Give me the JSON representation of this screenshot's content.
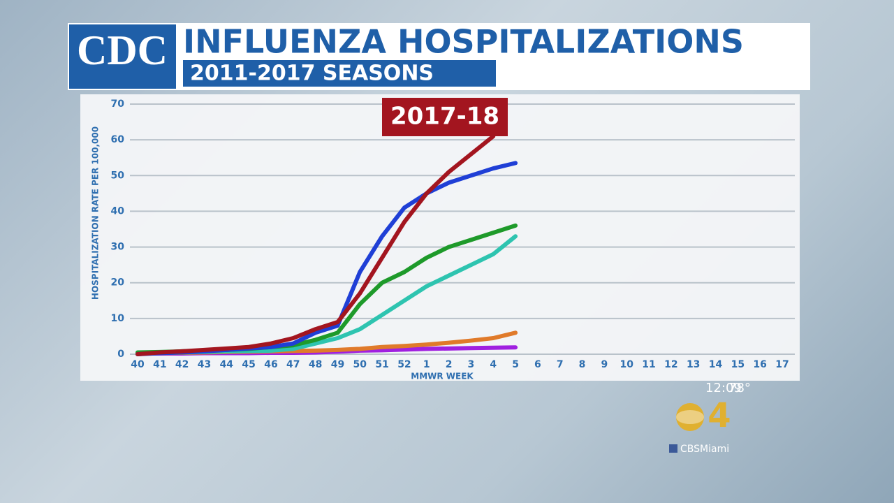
{
  "header": {
    "logo": "CDC",
    "title": "INFLUENZA HOSPITALIZATIONS",
    "subtitle": "2011-2017 SEASONS"
  },
  "overlay": {
    "time": "12:09",
    "temperature": "78°",
    "channel": "4",
    "handle": "CBSMiami"
  },
  "chart_data": {
    "type": "line",
    "x_label": "MMWR WEEK",
    "y_label": "HOSPITALIZATION RATE PER 100,000",
    "categories": [
      40,
      41,
      42,
      43,
      44,
      45,
      46,
      47,
      48,
      49,
      50,
      51,
      52,
      1,
      2,
      3,
      4,
      5,
      6,
      7,
      8,
      9,
      10,
      11,
      12,
      13,
      14,
      15,
      16,
      17
    ],
    "ylim": [
      0,
      70
    ],
    "yticks": [
      0,
      10,
      20,
      30,
      40,
      50,
      60,
      70
    ],
    "grid": true,
    "series": [
      {
        "name": "2017-18",
        "color": "#a3151f",
        "values": [
          0,
          0.5,
          0.8,
          1.2,
          1.6,
          2,
          3,
          4.5,
          7,
          9,
          17,
          27,
          37,
          45,
          51,
          56,
          61,
          null,
          null,
          null,
          null,
          null,
          null,
          null,
          null,
          null,
          null,
          null,
          null,
          null
        ]
      },
      {
        "color": "#1f3fd6",
        "values": [
          0,
          0.3,
          0.5,
          0.8,
          1.2,
          1.6,
          2,
          3,
          6,
          8,
          23,
          33,
          41,
          45,
          48,
          50,
          52,
          53.5,
          null,
          null,
          null,
          null,
          null,
          null,
          null,
          null,
          null,
          null,
          null,
          null
        ]
      },
      {
        "color": "#1e9a2a",
        "values": [
          0.5,
          0.6,
          0.8,
          1,
          1.2,
          1.5,
          2,
          2.5,
          4,
          6,
          14,
          20,
          23,
          27,
          30,
          32,
          34,
          36,
          null,
          null,
          null,
          null,
          null,
          null,
          null,
          null,
          null,
          null,
          null,
          null
        ]
      },
      {
        "color": "#2ec4b0",
        "values": [
          0.3,
          0.4,
          0.5,
          0.6,
          0.8,
          0.9,
          1,
          1.5,
          3,
          4.5,
          7,
          11,
          15,
          19,
          22,
          25,
          28,
          33,
          null,
          null,
          null,
          null,
          null,
          null,
          null,
          null,
          null,
          null,
          null,
          null
        ]
      },
      {
        "color": "#e07a2a",
        "values": [
          0.2,
          0.3,
          0.4,
          0.5,
          0.6,
          0.7,
          0.8,
          0.9,
          1,
          1.2,
          1.5,
          2,
          2.3,
          2.7,
          3.2,
          3.8,
          4.5,
          6,
          null,
          null,
          null,
          null,
          null,
          null,
          null,
          null,
          null,
          null,
          null,
          null
        ]
      },
      {
        "color": "#a020e0",
        "values": [
          0.2,
          0.2,
          0.2,
          0.3,
          0.3,
          0.3,
          0.4,
          0.4,
          0.5,
          0.7,
          1,
          1.1,
          1.3,
          1.5,
          1.6,
          1.7,
          1.8,
          1.9,
          null,
          null,
          null,
          null,
          null,
          null,
          null,
          null,
          null,
          null,
          null,
          null
        ]
      }
    ]
  }
}
